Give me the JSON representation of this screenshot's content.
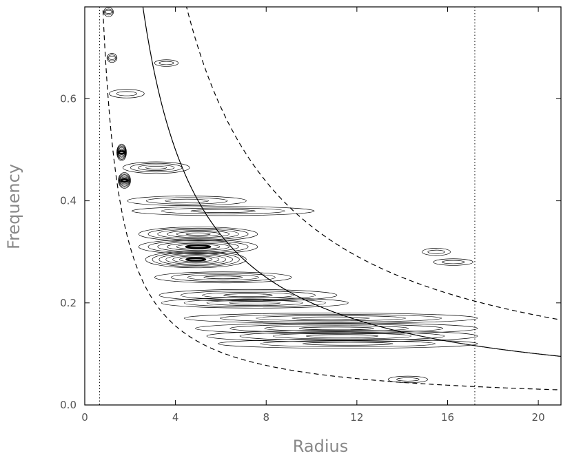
{
  "chart_data": {
    "type": "contour",
    "title": "",
    "xlabel": "Radius",
    "ylabel": "Frequency",
    "xlim": [
      0,
      21
    ],
    "ylim": [
      0,
      0.78
    ],
    "x_ticks": [
      0,
      4,
      8,
      12,
      16,
      20
    ],
    "x_tick_labels": [
      "0",
      "4",
      "8",
      "12",
      "16",
      "20"
    ],
    "y_ticks": [
      0.0,
      0.2,
      0.4,
      0.6
    ],
    "y_tick_labels": [
      "0.0",
      "0.2",
      "0.4",
      "0.6"
    ],
    "grid": false,
    "legend": "none",
    "colors": {
      "ink": "#000000",
      "axis_text": "#555555",
      "axis_title": "#888888"
    },
    "vertical_reference_lines": [
      0.65,
      17.2
    ],
    "curves": [
      {
        "style": "solid",
        "formula": "f = k / r",
        "k": 2.0
      },
      {
        "style": "dashed",
        "formula": "f = k / r",
        "k": 3.5
      },
      {
        "style": "dashed",
        "formula": "f = k / r",
        "k": 0.62
      }
    ],
    "contour_features": [
      {
        "x": 1.55,
        "y": 0.495,
        "ridge_x_end": 1.7,
        "amplitude": 1.0
      },
      {
        "x": 1.6,
        "y": 0.44,
        "ridge_x_end": 1.9,
        "amplitude": 0.95
      },
      {
        "x": 1.8,
        "y": 0.465,
        "ridge_x_end": 4.5,
        "amplitude": 0.6
      },
      {
        "x": 2.0,
        "y": 0.4,
        "ridge_x_end": 7.0,
        "amplitude": 0.45
      },
      {
        "x": 2.2,
        "y": 0.38,
        "ridge_x_end": 10.0,
        "amplitude": 0.4
      },
      {
        "x": 2.5,
        "y": 0.335,
        "ridge_x_end": 7.5,
        "amplitude": 0.8
      },
      {
        "x": 2.5,
        "y": 0.31,
        "ridge_x_end": 7.5,
        "amplitude": 0.85
      },
      {
        "x": 2.8,
        "y": 0.285,
        "ridge_x_end": 7.0,
        "amplitude": 1.0
      },
      {
        "x": 3.2,
        "y": 0.25,
        "ridge_x_end": 9.0,
        "amplitude": 0.55
      },
      {
        "x": 3.4,
        "y": 0.215,
        "ridge_x_end": 11.0,
        "amplitude": 0.6
      },
      {
        "x": 3.5,
        "y": 0.2,
        "ridge_x_end": 11.5,
        "amplitude": 0.5
      },
      {
        "x": 4.5,
        "y": 0.17,
        "ridge_x_end": 17.2,
        "amplitude": 0.5
      },
      {
        "x": 5.0,
        "y": 0.15,
        "ridge_x_end": 17.2,
        "amplitude": 0.55
      },
      {
        "x": 5.5,
        "y": 0.135,
        "ridge_x_end": 17.2,
        "amplitude": 0.6
      },
      {
        "x": 6.0,
        "y": 0.12,
        "ridge_x_end": 17.2,
        "amplitude": 0.4
      },
      {
        "x": 15.0,
        "y": 0.3,
        "ridge_x_end": 16.0,
        "amplitude": 0.25
      },
      {
        "x": 15.5,
        "y": 0.28,
        "ridge_x_end": 17.0,
        "amplitude": 0.2
      },
      {
        "x": 13.5,
        "y": 0.05,
        "ridge_x_end": 15.0,
        "amplitude": 0.2
      },
      {
        "x": 3.2,
        "y": 0.67,
        "ridge_x_end": 4.0,
        "amplitude": 0.2
      },
      {
        "x": 1.2,
        "y": 0.61,
        "ridge_x_end": 2.5,
        "amplitude": 0.35
      },
      {
        "x": 1.1,
        "y": 0.68,
        "ridge_x_end": 1.3,
        "amplitude": 0.4
      },
      {
        "x": 1.0,
        "y": 0.77,
        "ridge_x_end": 1.1,
        "amplitude": 0.4
      }
    ]
  }
}
